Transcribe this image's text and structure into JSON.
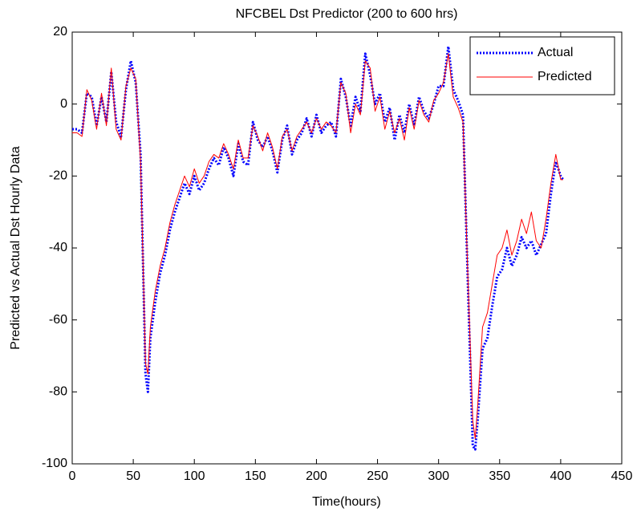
{
  "chart_data": {
    "type": "line",
    "title": "NFCBEL Dst Predictor (200 to 600 hrs)",
    "xlabel": "Time(hours)",
    "ylabel": "Predicted vs Actual Dst Hourly Data",
    "xlim": [
      0,
      450
    ],
    "ylim": [
      -100,
      20
    ],
    "xticks": [
      0,
      50,
      100,
      150,
      200,
      250,
      300,
      350,
      400,
      450
    ],
    "yticks": [
      -100,
      -80,
      -60,
      -40,
      -20,
      0,
      20
    ],
    "legend": "upper right",
    "x": [
      0,
      4,
      8,
      12,
      16,
      20,
      24,
      28,
      32,
      36,
      40,
      44,
      48,
      52,
      56,
      60,
      62,
      64,
      68,
      72,
      76,
      80,
      84,
      88,
      92,
      96,
      100,
      104,
      108,
      112,
      116,
      120,
      124,
      128,
      132,
      136,
      140,
      144,
      148,
      152,
      156,
      160,
      164,
      168,
      172,
      176,
      180,
      184,
      188,
      192,
      196,
      200,
      204,
      208,
      212,
      216,
      220,
      224,
      228,
      232,
      236,
      240,
      244,
      248,
      252,
      256,
      260,
      264,
      268,
      272,
      276,
      280,
      284,
      288,
      292,
      296,
      300,
      304,
      308,
      312,
      316,
      320,
      324,
      328,
      330,
      332,
      336,
      340,
      344,
      348,
      352,
      356,
      360,
      364,
      368,
      372,
      376,
      380,
      384,
      388,
      392,
      396,
      400,
      402
    ],
    "series": [
      {
        "name": "Actual",
        "color": "#0000ff",
        "linestyle": "dotted",
        "values": [
          -7,
          -7,
          -8,
          3,
          2,
          -6,
          2,
          -5,
          9,
          -5,
          -9,
          4,
          12,
          6,
          -14,
          -75,
          -80,
          -65,
          -55,
          -47,
          -42,
          -35,
          -30,
          -26,
          -22,
          -25,
          -20,
          -24,
          -22,
          -18,
          -15,
          -17,
          -12,
          -15,
          -20,
          -11,
          -16,
          -17,
          -5,
          -10,
          -12,
          -9,
          -13,
          -19,
          -10,
          -6,
          -14,
          -10,
          -8,
          -4,
          -9,
          -3,
          -8,
          -6,
          -5,
          -9,
          7,
          2,
          -6,
          2,
          -2,
          14,
          8,
          0,
          3,
          -5,
          -1,
          -10,
          -3,
          -8,
          0,
          -6,
          2,
          -2,
          -4,
          0,
          5,
          5,
          16,
          4,
          1,
          -3,
          -50,
          -95,
          -96,
          -88,
          -68,
          -65,
          -56,
          -48,
          -46,
          -40,
          -45,
          -42,
          -37,
          -40,
          -38,
          -42,
          -39,
          -36,
          -25,
          -16,
          -20,
          -21
        ]
      },
      {
        "name": "Predicted",
        "color": "#ff0000",
        "linestyle": "solid",
        "values": [
          -8,
          -8,
          -9,
          4,
          1,
          -7,
          3,
          -6,
          10,
          -7,
          -10,
          5,
          10,
          7,
          -16,
          -72,
          -75,
          -62,
          -52,
          -45,
          -40,
          -33,
          -28,
          -24,
          -20,
          -23,
          -18,
          -22,
          -20,
          -16,
          -14,
          -15,
          -11,
          -14,
          -18,
          -10,
          -15,
          -15,
          -6,
          -9,
          -13,
          -8,
          -12,
          -18,
          -9,
          -7,
          -13,
          -9,
          -7,
          -5,
          -8,
          -4,
          -7,
          -5,
          -6,
          -8,
          6,
          3,
          -8,
          0,
          -3,
          12,
          10,
          -2,
          2,
          -7,
          -2,
          -8,
          -4,
          -10,
          -1,
          -7,
          1,
          -3,
          -5,
          1,
          3,
          6,
          14,
          2,
          -1,
          -5,
          -48,
          -88,
          -93,
          -84,
          -62,
          -58,
          -50,
          -42,
          -40,
          -35,
          -42,
          -38,
          -32,
          -36,
          -30,
          -38,
          -40,
          -32,
          -22,
          -14,
          -21,
          -21
        ]
      }
    ]
  }
}
